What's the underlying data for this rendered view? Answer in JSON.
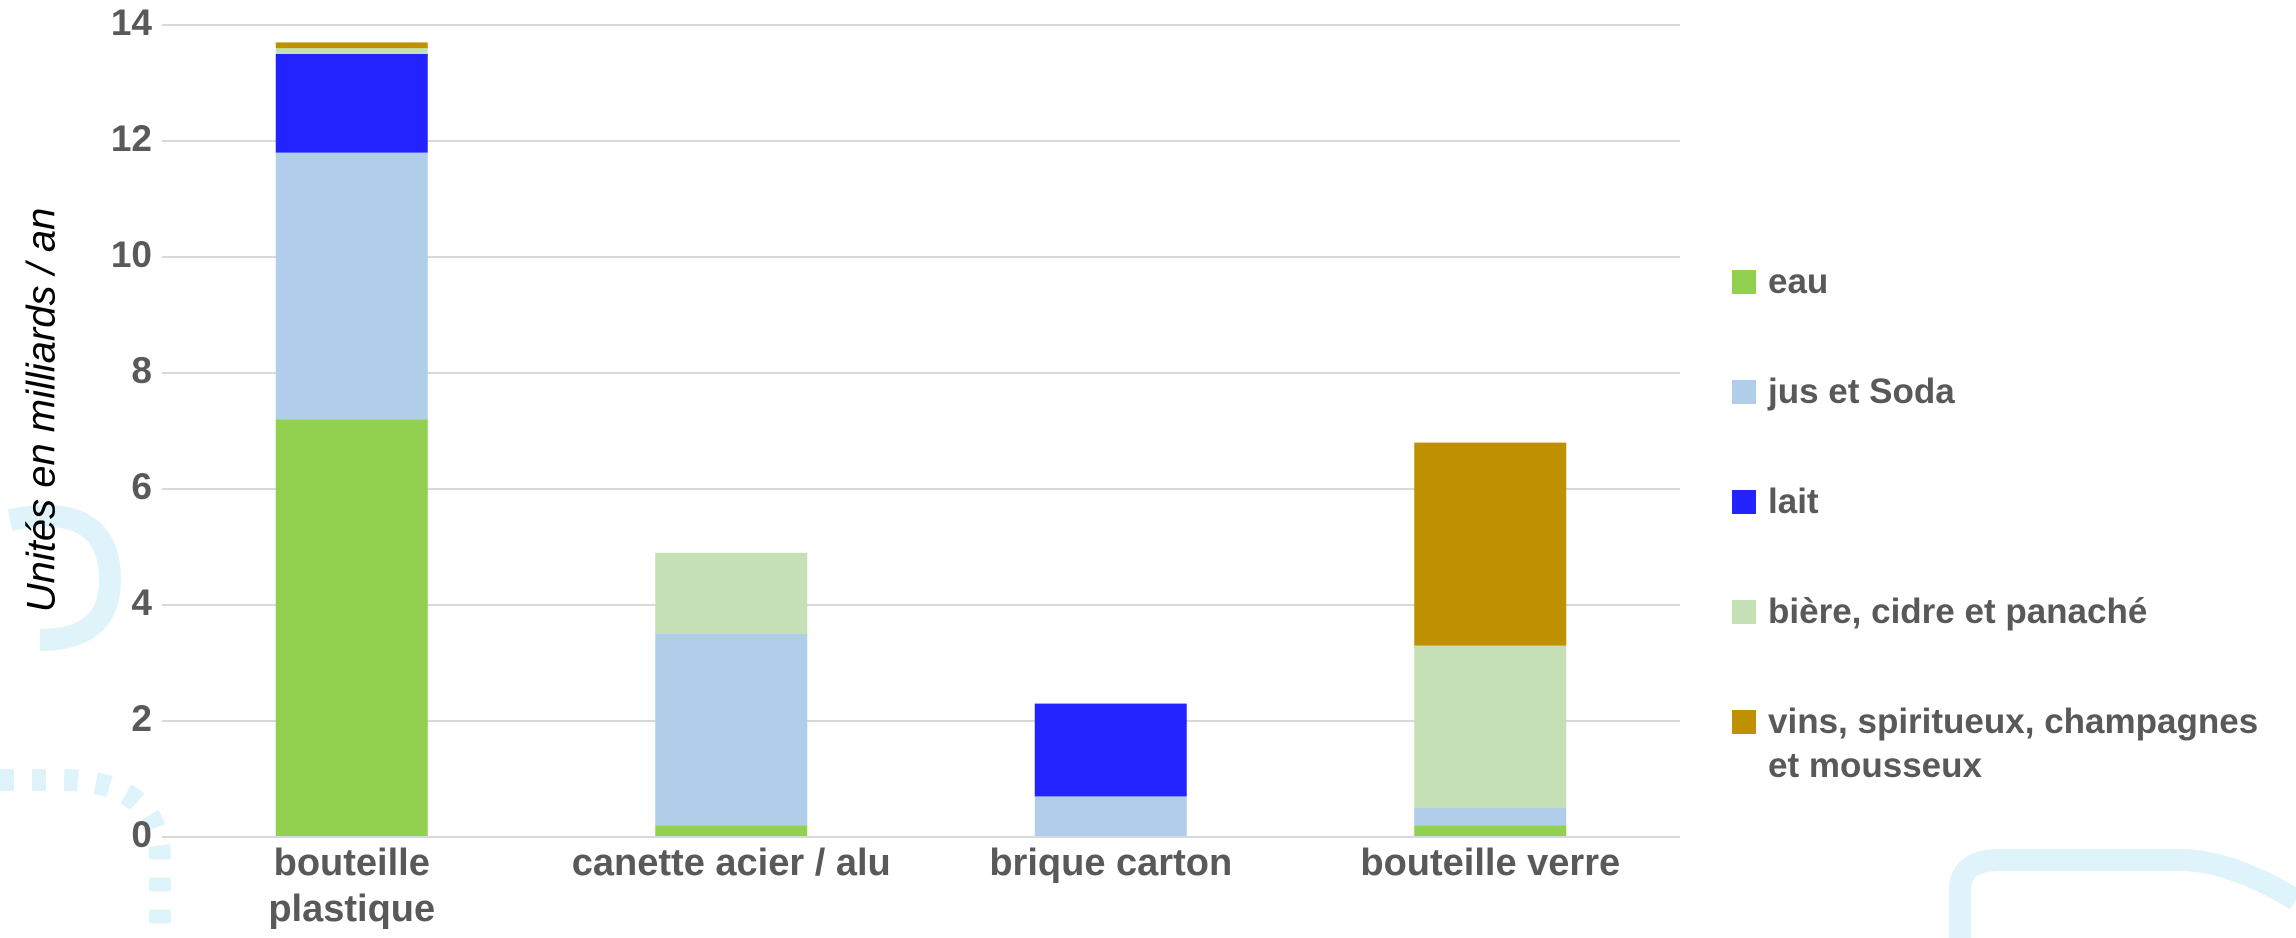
{
  "chart_data": {
    "type": "stacked_bar",
    "y_label": "Unités en milliards / an",
    "categories": [
      "bouteille plastique",
      "canette acier / alu",
      "brique carton",
      "bouteille verre"
    ],
    "series": [
      {
        "name": "eau",
        "color": "#92d050",
        "values": [
          7.2,
          0.2,
          0,
          0.2
        ]
      },
      {
        "name": "jus et Soda",
        "color": "#b0cdea",
        "values": [
          4.6,
          3.3,
          0.7,
          0.3
        ]
      },
      {
        "name": "lait",
        "color": "#2323ff",
        "values": [
          1.7,
          0,
          1.6,
          0
        ]
      },
      {
        "name": "bière, cidre et panaché",
        "color": "#c5e0b4",
        "values": [
          0.1,
          1.4,
          0,
          2.8
        ]
      },
      {
        "name": "vins, spiritueux, champagnes et mousseux",
        "color": "#bf9000",
        "values": [
          0.1,
          0,
          0,
          3.5
        ]
      }
    ],
    "ylim": [
      0,
      14
    ],
    "yticks": [
      0,
      2,
      4,
      6,
      8,
      10,
      12,
      14
    ],
    "grid": true,
    "legend": "right"
  }
}
